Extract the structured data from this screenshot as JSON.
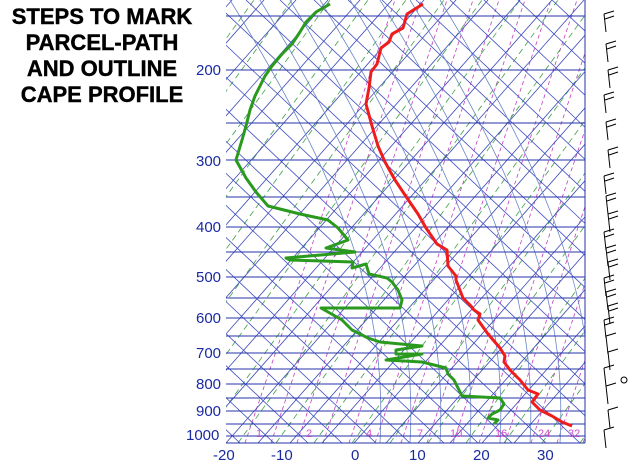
{
  "title_lines": [
    "STEPS TO MARK",
    "PARCEL-PATH",
    "AND OUTLINE",
    "CAPE PROFILE"
  ],
  "pressure_labels": [
    "200",
    "300",
    "400",
    "500",
    "600",
    "700",
    "800",
    "900",
    "1000"
  ],
  "temperature_labels": [
    "-20",
    "-10",
    "0",
    "10",
    "20",
    "30"
  ],
  "mixing_ratio_labels": [
    "1",
    "2",
    "4",
    "7",
    "10",
    "16",
    "24",
    "32"
  ],
  "colors": {
    "isobar": "#2433a8",
    "isotherm": "#3a49b8",
    "dry_adiabat": "#3f4ec4",
    "moist_adiabat": "#6a86c8",
    "mixing_ratio": "#c040c0",
    "green_dashed": "#3fa048",
    "temperature_profile": "#ee1c1c",
    "dewpoint_profile": "#2a9a1e",
    "wind_barbs": "#000000"
  }
}
